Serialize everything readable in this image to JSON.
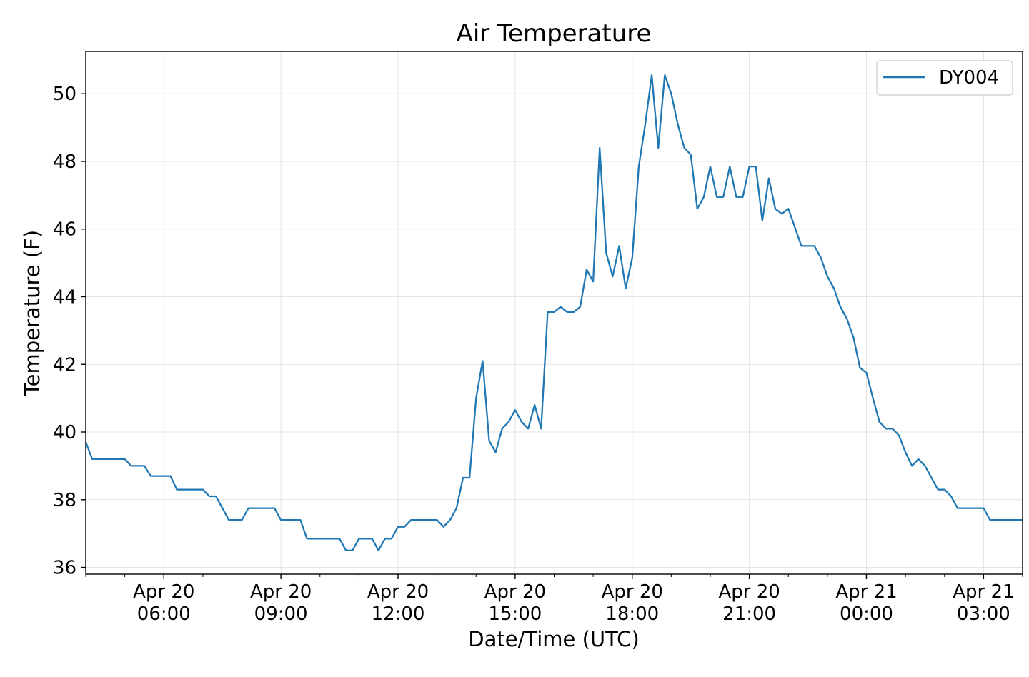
{
  "chart_data": {
    "type": "line",
    "title": "Air Temperature",
    "xlabel": "Date/Time (UTC)",
    "ylabel": "Temperature (F)",
    "ylim": [
      35.8,
      51.25
    ],
    "xlim": [
      "2019-04-20 04:00",
      "2019-04-21 04:00"
    ],
    "grid": true,
    "legend_position": "top-right",
    "y_ticks": [
      "36",
      "38",
      "40",
      "42",
      "44",
      "46",
      "48",
      "50"
    ],
    "x_ticks": [
      {
        "line1": "Apr 20",
        "line2": "06:00",
        "t": "2019-04-20 06:00"
      },
      {
        "line1": "Apr 20",
        "line2": "09:00",
        "t": "2019-04-20 09:00"
      },
      {
        "line1": "Apr 20",
        "line2": "12:00",
        "t": "2019-04-20 12:00"
      },
      {
        "line1": "Apr 20",
        "line2": "15:00",
        "t": "2019-04-20 15:00"
      },
      {
        "line1": "Apr 20",
        "line2": "18:00",
        "t": "2019-04-20 18:00"
      },
      {
        "line1": "Apr 20",
        "line2": "21:00",
        "t": "2019-04-20 21:00"
      },
      {
        "line1": "Apr 21",
        "line2": "00:00",
        "t": "2019-04-21 00:00"
      },
      {
        "line1": "Apr 21",
        "line2": "03:00",
        "t": "2019-04-21 03:00"
      }
    ],
    "series": [
      {
        "name": "DY004",
        "color": "#1f77b4",
        "points": [
          [
            "2019-04-20 04:00",
            39.7
          ],
          [
            "2019-04-20 04:10",
            39.2
          ],
          [
            "2019-04-20 05:00",
            39.2
          ],
          [
            "2019-04-20 05:10",
            39.0
          ],
          [
            "2019-04-20 05:30",
            39.0
          ],
          [
            "2019-04-20 05:40",
            38.7
          ],
          [
            "2019-04-20 06:10",
            38.7
          ],
          [
            "2019-04-20 06:20",
            38.3
          ],
          [
            "2019-04-20 07:00",
            38.3
          ],
          [
            "2019-04-20 07:10",
            38.1
          ],
          [
            "2019-04-20 07:20",
            38.1
          ],
          [
            "2019-04-20 07:40",
            37.4
          ],
          [
            "2019-04-20 08:00",
            37.4
          ],
          [
            "2019-04-20 08:10",
            37.75
          ],
          [
            "2019-04-20 08:50",
            37.75
          ],
          [
            "2019-04-20 09:00",
            37.4
          ],
          [
            "2019-04-20 09:30",
            37.4
          ],
          [
            "2019-04-20 09:40",
            36.85
          ],
          [
            "2019-04-20 10:30",
            36.85
          ],
          [
            "2019-04-20 10:40",
            36.5
          ],
          [
            "2019-04-20 10:50",
            36.5
          ],
          [
            "2019-04-20 11:00",
            36.85
          ],
          [
            "2019-04-20 11:20",
            36.85
          ],
          [
            "2019-04-20 11:30",
            36.5
          ],
          [
            "2019-04-20 11:40",
            36.85
          ],
          [
            "2019-04-20 11:50",
            36.85
          ],
          [
            "2019-04-20 12:00",
            37.2
          ],
          [
            "2019-04-20 12:10",
            37.2
          ],
          [
            "2019-04-20 12:20",
            37.4
          ],
          [
            "2019-04-20 13:00",
            37.4
          ],
          [
            "2019-04-20 13:10",
            37.2
          ],
          [
            "2019-04-20 13:20",
            37.4
          ],
          [
            "2019-04-20 13:30",
            37.75
          ],
          [
            "2019-04-20 13:40",
            38.65
          ],
          [
            "2019-04-20 13:50",
            38.65
          ],
          [
            "2019-04-20 14:00",
            41.0
          ],
          [
            "2019-04-20 14:10",
            42.1
          ],
          [
            "2019-04-20 14:20",
            39.75
          ],
          [
            "2019-04-20 14:30",
            39.4
          ],
          [
            "2019-04-20 14:40",
            40.1
          ],
          [
            "2019-04-20 14:50",
            40.3
          ],
          [
            "2019-04-20 15:00",
            40.65
          ],
          [
            "2019-04-20 15:10",
            40.3
          ],
          [
            "2019-04-20 15:20",
            40.1
          ],
          [
            "2019-04-20 15:30",
            40.8
          ],
          [
            "2019-04-20 15:40",
            40.1
          ],
          [
            "2019-04-20 15:50",
            43.55
          ],
          [
            "2019-04-20 16:00",
            43.55
          ],
          [
            "2019-04-20 16:10",
            43.7
          ],
          [
            "2019-04-20 16:20",
            43.55
          ],
          [
            "2019-04-20 16:30",
            43.55
          ],
          [
            "2019-04-20 16:40",
            43.7
          ],
          [
            "2019-04-20 16:50",
            44.8
          ],
          [
            "2019-04-20 17:00",
            44.45
          ],
          [
            "2019-04-20 17:10",
            48.4
          ],
          [
            "2019-04-20 17:20",
            45.3
          ],
          [
            "2019-04-20 17:30",
            44.6
          ],
          [
            "2019-04-20 17:40",
            45.5
          ],
          [
            "2019-04-20 17:50",
            44.25
          ],
          [
            "2019-04-20 18:00",
            45.15
          ],
          [
            "2019-04-20 18:10",
            47.85
          ],
          [
            "2019-04-20 18:20",
            49.1
          ],
          [
            "2019-04-20 18:30",
            50.55
          ],
          [
            "2019-04-20 18:40",
            48.4
          ],
          [
            "2019-04-20 18:50",
            50.55
          ],
          [
            "2019-04-20 19:00",
            50.0
          ],
          [
            "2019-04-20 19:10",
            49.1
          ],
          [
            "2019-04-20 19:20",
            48.4
          ],
          [
            "2019-04-20 19:30",
            48.2
          ],
          [
            "2019-04-20 19:40",
            46.6
          ],
          [
            "2019-04-20 19:50",
            46.95
          ],
          [
            "2019-04-20 20:00",
            47.85
          ],
          [
            "2019-04-20 20:10",
            46.95
          ],
          [
            "2019-04-20 20:20",
            46.95
          ],
          [
            "2019-04-20 20:30",
            47.85
          ],
          [
            "2019-04-20 20:40",
            46.95
          ],
          [
            "2019-04-20 20:50",
            46.95
          ],
          [
            "2019-04-20 21:00",
            47.85
          ],
          [
            "2019-04-20 21:10",
            47.85
          ],
          [
            "2019-04-20 21:20",
            46.25
          ],
          [
            "2019-04-20 21:30",
            47.5
          ],
          [
            "2019-04-20 21:40",
            46.6
          ],
          [
            "2019-04-20 21:50",
            46.45
          ],
          [
            "2019-04-20 22:00",
            46.6
          ],
          [
            "2019-04-20 22:10",
            46.05
          ],
          [
            "2019-04-20 22:20",
            45.5
          ],
          [
            "2019-04-20 22:30",
            45.5
          ],
          [
            "2019-04-20 22:40",
            45.5
          ],
          [
            "2019-04-20 22:50",
            45.15
          ],
          [
            "2019-04-20 23:00",
            44.6
          ],
          [
            "2019-04-20 23:10",
            44.25
          ],
          [
            "2019-04-20 23:20",
            43.7
          ],
          [
            "2019-04-20 23:30",
            43.35
          ],
          [
            "2019-04-20 23:40",
            42.8
          ],
          [
            "2019-04-20 23:50",
            41.9
          ],
          [
            "2019-04-21 00:00",
            41.75
          ],
          [
            "2019-04-21 00:10",
            41.0
          ],
          [
            "2019-04-21 00:20",
            40.3
          ],
          [
            "2019-04-21 00:30",
            40.1
          ],
          [
            "2019-04-21 00:40",
            40.1
          ],
          [
            "2019-04-21 00:50",
            39.9
          ],
          [
            "2019-04-21 01:00",
            39.4
          ],
          [
            "2019-04-21 01:10",
            39.0
          ],
          [
            "2019-04-21 01:20",
            39.2
          ],
          [
            "2019-04-21 01:30",
            39.0
          ],
          [
            "2019-04-21 01:40",
            38.65
          ],
          [
            "2019-04-21 01:50",
            38.3
          ],
          [
            "2019-04-21 02:00",
            38.3
          ],
          [
            "2019-04-21 02:10",
            38.1
          ],
          [
            "2019-04-21 02:20",
            37.75
          ],
          [
            "2019-04-21 03:00",
            37.75
          ],
          [
            "2019-04-21 03:10",
            37.4
          ],
          [
            "2019-04-21 04:00",
            37.4
          ]
        ]
      }
    ]
  }
}
